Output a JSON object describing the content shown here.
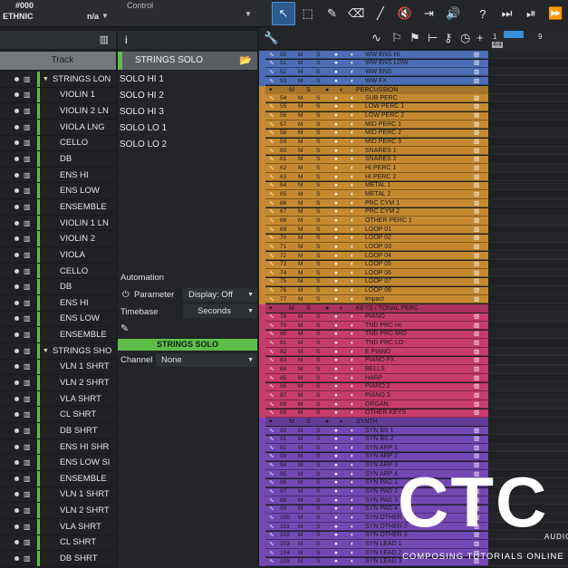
{
  "topbar": {
    "number": "#000",
    "preset": "ETHNIC",
    "na": "n/a",
    "control": "Control"
  },
  "toolbar": {
    "tools": [
      "arrow-tool",
      "range-tool",
      "pencil-tool",
      "eraser-tool",
      "paint-tool",
      "mute-tool",
      "split-tool",
      "listen-tool",
      "help",
      "snap-tool",
      "quantize-tool"
    ],
    "help_label": "?"
  },
  "tracklist": {
    "header": "Track",
    "rows": [
      {
        "name": "STRINGS LON",
        "folder": true
      },
      {
        "name": "VIOLIN 1"
      },
      {
        "name": "VIOLIN 2 LN"
      },
      {
        "name": "VIOLA LNG"
      },
      {
        "name": "CELLO"
      },
      {
        "name": "DB"
      },
      {
        "name": "ENS HI"
      },
      {
        "name": "ENS LOW"
      },
      {
        "name": "ENSEMBLE"
      },
      {
        "name": "VIOLIN 1 LN"
      },
      {
        "name": "VIOLIN 2"
      },
      {
        "name": "VIOLA"
      },
      {
        "name": "CELLO"
      },
      {
        "name": "DB"
      },
      {
        "name": "ENS HI"
      },
      {
        "name": "ENS LOW"
      },
      {
        "name": "ENSEMBLE"
      },
      {
        "name": "STRINGS SHO",
        "folder": true
      },
      {
        "name": "VLN 1 SHRT"
      },
      {
        "name": "VLN 2 SHRT"
      },
      {
        "name": "VLA SHRT"
      },
      {
        "name": "CL SHRT"
      },
      {
        "name": "DB SHRT"
      },
      {
        "name": "ENS HI SHR"
      },
      {
        "name": "ENS LOW SI"
      },
      {
        "name": "ENSEMBLE"
      },
      {
        "name": "VLN 1 SHRT"
      },
      {
        "name": "VLN 2 SHRT"
      },
      {
        "name": "VLA SHRT"
      },
      {
        "name": "CL SHRT"
      },
      {
        "name": "DB SHRT"
      }
    ]
  },
  "inspector": {
    "header_icon": "i",
    "track_name": "STRINGS SOLO",
    "subtracks": [
      "SOLO HI 1",
      "SOLO HI 2",
      "SOLO HI 3",
      "SOLO LO 1",
      "SOLO LO 2"
    ],
    "automation_label": "Automation",
    "parameter_label": "Parameter",
    "display_label": "Display: Off",
    "timebase_label": "Timebase",
    "timebase_value": "Seconds",
    "channel_header": "STRINGS SOLO",
    "channel_label": "Channel",
    "channel_value": "None"
  },
  "arrange": {
    "ruler": {
      "bar1": "1",
      "bar9": "9",
      "sig": "4/4"
    },
    "colors": {
      "blue": "#4d6db5",
      "orange": "#c58a31",
      "pink": "#c63c6c",
      "purple": "#7448b2"
    },
    "sections": [
      {
        "color": "blue",
        "folder": null,
        "tracks": [
          [
            "50",
            "WW ENS HI"
          ],
          [
            "51",
            "WW ENS LOW"
          ],
          [
            "52",
            "WW ENS"
          ],
          [
            "53",
            "WW FX"
          ]
        ]
      },
      {
        "color": "orange",
        "folder": "PERCUSSION",
        "tracks": [
          [
            "54",
            "SUB PERC"
          ],
          [
            "55",
            "LOW PERC 1"
          ],
          [
            "56",
            "LOW PERC 2"
          ],
          [
            "57",
            "MID PERC 1"
          ],
          [
            "58",
            "MID PERC 2"
          ],
          [
            "59",
            "MID PERC 3"
          ],
          [
            "60",
            "SNARES 1"
          ],
          [
            "61",
            "SNARES 2"
          ],
          [
            "62",
            "HI PERC 1"
          ],
          [
            "63",
            "HI PERC 2"
          ],
          [
            "64",
            "METAL 1"
          ],
          [
            "65",
            "METAL 2"
          ],
          [
            "66",
            "PRC CYM 1"
          ],
          [
            "67",
            "PRC CYM 2"
          ],
          [
            "68",
            "OTHER PERC 1"
          ],
          [
            "69",
            "LOOP 01"
          ],
          [
            "70",
            "LOOP 02"
          ],
          [
            "71",
            "LOOP 03"
          ],
          [
            "72",
            "LOOP 04"
          ],
          [
            "73",
            "LOOP 05"
          ],
          [
            "74",
            "LOOP 06"
          ],
          [
            "75",
            "LOOP 07"
          ],
          [
            "76",
            "LOOP 08"
          ],
          [
            "77",
            "Impact"
          ]
        ]
      },
      {
        "color": "pink",
        "folder": "KEYS / TONAL PERC",
        "tracks": [
          [
            "78",
            "PIANO"
          ],
          [
            "79",
            "TND PRC HI"
          ],
          [
            "80",
            "TND PRC MID"
          ],
          [
            "81",
            "TND PRC LO"
          ],
          [
            "82",
            "E PIANO"
          ],
          [
            "83",
            "PIANO FX"
          ],
          [
            "84",
            "BELLS"
          ],
          [
            "85",
            "HARP"
          ],
          [
            "86",
            "PIANO 2"
          ],
          [
            "87",
            "PIANO 3"
          ],
          [
            "88",
            "ORGAN"
          ],
          [
            "89",
            "OTHER KEYS"
          ]
        ]
      },
      {
        "color": "purple",
        "folder": "SYNTH",
        "tracks": [
          [
            "90",
            "SYN BS 1"
          ],
          [
            "91",
            "SYN BS 2"
          ],
          [
            "92",
            "SYN ARP 1"
          ],
          [
            "93",
            "SYN ARP 2"
          ],
          [
            "94",
            "SYN ARP 3"
          ],
          [
            "95",
            "SYN ARP 4"
          ],
          [
            "96",
            "SYN PAD 1"
          ],
          [
            "97",
            "SYN PAD 2"
          ],
          [
            "98",
            "SYN PAD 3"
          ],
          [
            "99",
            "SYN PAD 4"
          ],
          [
            "100",
            "SYN OTHER 1"
          ],
          [
            "101",
            "SYN OTHER 2"
          ],
          [
            "102",
            "SYN OTHER 3"
          ],
          [
            "103",
            "SYN LEAD 1"
          ],
          [
            "104",
            "SYN LEAD 2"
          ],
          [
            "105",
            "SYN LEAD 3"
          ]
        ]
      }
    ],
    "labels": {
      "m": "M",
      "s": "S"
    }
  },
  "watermark": {
    "logo": "CTC",
    "brand": "AUDIOZ",
    "tagline": "COMPOSING TUTORIALS ONLINE"
  }
}
